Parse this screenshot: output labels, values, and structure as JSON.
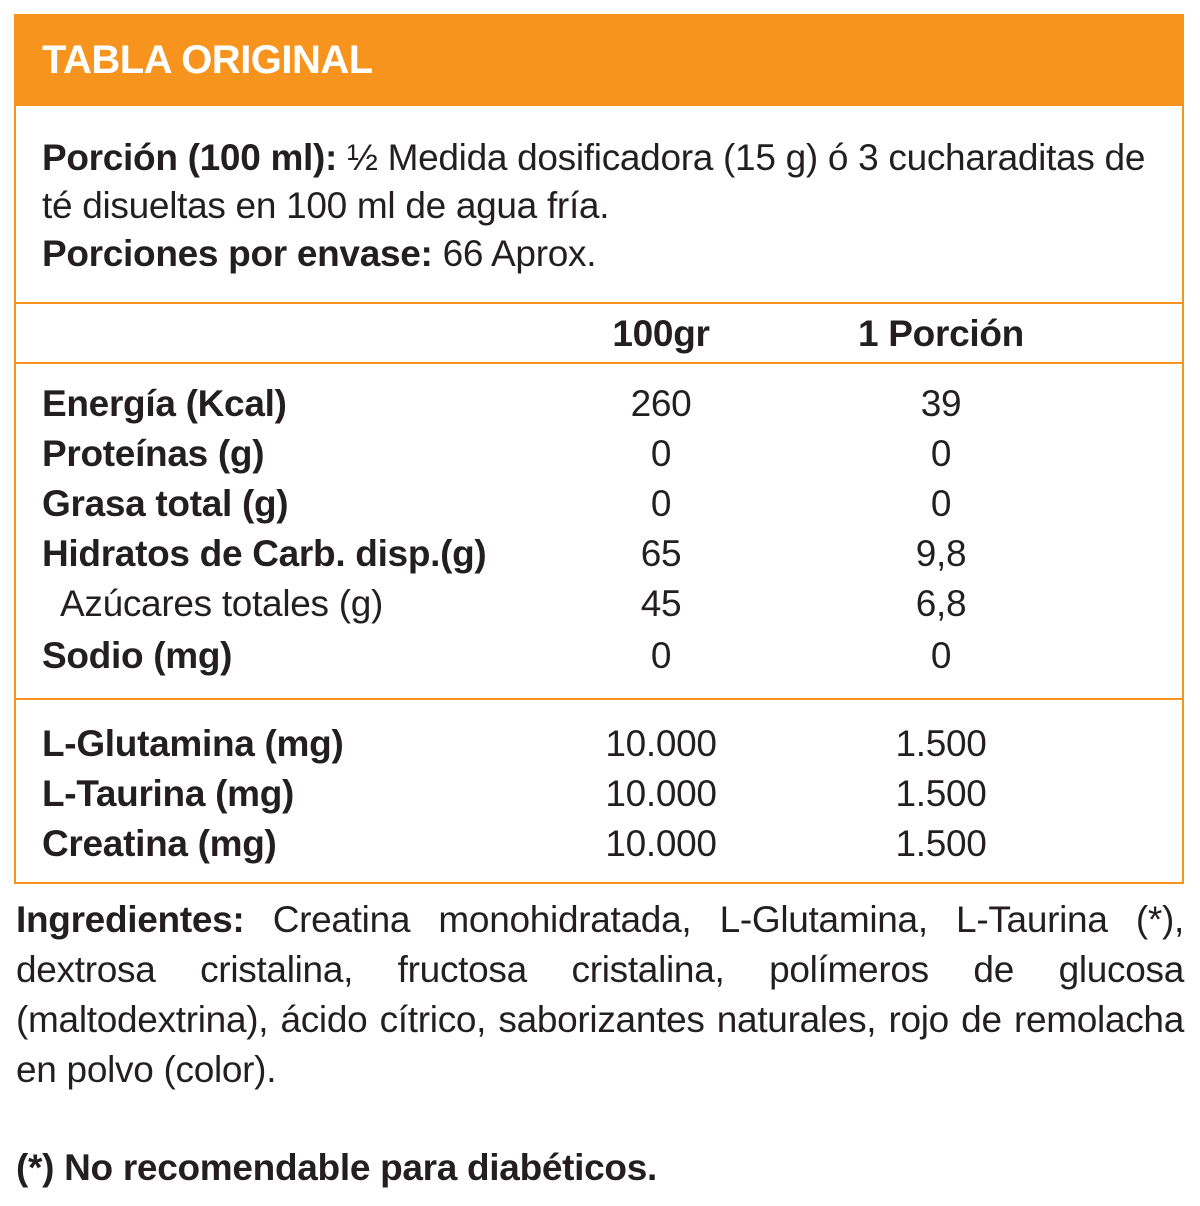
{
  "header": {
    "title": "TABLA ORIGINAL"
  },
  "serving": {
    "portion_label": "Porción (100 ml):",
    "portion_text": "½ Medida dosificadora (15 g) ó 3 cucharaditas de té disueltas en 100 ml de agua fría.",
    "servings_label": "Porciones por envase:",
    "servings_text": "66 Aprox."
  },
  "columns": {
    "per_100": "100gr",
    "per_portion": "1 Porción"
  },
  "nutrients": [
    {
      "name": "Energía (Kcal)",
      "per_100": "260",
      "per_portion": "39",
      "bold": true
    },
    {
      "name": "Proteínas (g)",
      "per_100": "0",
      "per_portion": "0",
      "bold": true
    },
    {
      "name": "Grasa total (g)",
      "per_100": "0",
      "per_portion": "0",
      "bold": true
    },
    {
      "name": "Hidratos de Carb. disp.(g)",
      "per_100": "65",
      "per_portion": "9,8",
      "bold": true
    },
    {
      "name": "Azúcares totales (g)",
      "per_100": "45",
      "per_portion": "6,8",
      "bold": false
    },
    {
      "name": "Sodio (mg)",
      "per_100": "0",
      "per_portion": "0",
      "bold": true
    }
  ],
  "supplements": [
    {
      "name": "L-Glutamina (mg)",
      "per_100": "10.000",
      "per_portion": "1.500"
    },
    {
      "name": "L-Taurina (mg)",
      "per_100": "10.000",
      "per_portion": "1.500"
    },
    {
      "name": "Creatina (mg)",
      "per_100": "10.000",
      "per_portion": "1.500"
    }
  ],
  "ingredients": {
    "label": "Ingredientes:",
    "text": "Creatina monohidratada, L-Glutamina, L-Taurina (*), dextrosa cristalina, fructosa cristalina, polímeros de glucosa (maltodextrina), ácido cítrico, saborizantes naturales, rojo de remolacha en polvo (color)."
  },
  "footnote": "(*) No recomendable para diabéticos.",
  "colors": {
    "accent": "#f7941d",
    "text": "#231f20",
    "header_text": "#ffffff"
  }
}
